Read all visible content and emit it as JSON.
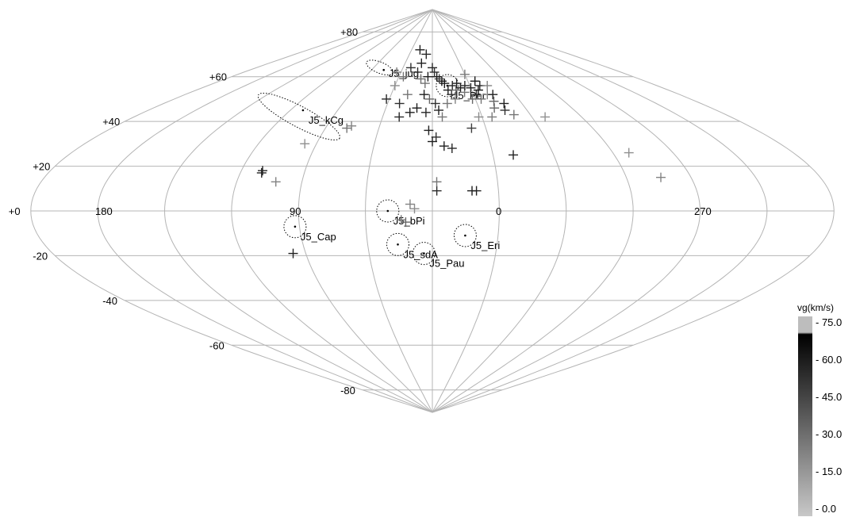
{
  "chart_data": {
    "type": "scatter",
    "projection": "sinusoidal (all-sky)",
    "xlim": [
      -180,
      180
    ],
    "ylim": [
      -90,
      90
    ],
    "lon_labels": [
      "180",
      "90",
      "0",
      "270"
    ],
    "lat_labels": [
      "+80",
      "+60",
      "+40",
      "+20",
      "+0",
      "-20",
      "-40",
      "-60",
      "-80"
    ],
    "colorbar": {
      "title": "vg(km/s)",
      "range": [
        0,
        75
      ],
      "ticks": [
        "- 75.0",
        "- 60.0",
        "- 45.0",
        "- 30.0",
        "- 15.0",
        "- 0.0"
      ]
    },
    "showers": [
      {
        "name": "J5_jug",
        "lon": -48,
        "lat": 63
      },
      {
        "name": "J5_kCg",
        "lon": -82,
        "lat": 45
      },
      {
        "name": "J5_Per",
        "lon": 12,
        "lat": 56
      },
      {
        "name": "J5_bPi",
        "lon": -20,
        "lat": 0
      },
      {
        "name": "J5_Cap",
        "lon": -62,
        "lat": -7
      },
      {
        "name": "J5_sdA",
        "lon": -16,
        "lat": -15
      },
      {
        "name": "J5_Pau",
        "lon": -4,
        "lat": -19
      },
      {
        "name": "J5_Eri",
        "lon": 15,
        "lat": -11
      }
    ],
    "points": [
      {
        "lon": 12,
        "lat": 54,
        "vg": 60
      },
      {
        "lon": 14,
        "lat": 52,
        "vg": 55
      },
      {
        "lon": 10,
        "lat": 57,
        "vg": 62
      },
      {
        "lon": 8,
        "lat": 58,
        "vg": 65
      },
      {
        "lon": 6,
        "lat": 59,
        "vg": 48
      },
      {
        "lon": 16,
        "lat": 56,
        "vg": 58
      },
      {
        "lon": 18,
        "lat": 54,
        "vg": 35
      },
      {
        "lon": 20,
        "lat": 57,
        "vg": 60
      },
      {
        "lon": 22,
        "lat": 55,
        "vg": 62
      },
      {
        "lon": 24,
        "lat": 53,
        "vg": 30
      },
      {
        "lon": 26,
        "lat": 56,
        "vg": 58
      },
      {
        "lon": 30,
        "lat": 55,
        "vg": 60
      },
      {
        "lon": 32,
        "lat": 52,
        "vg": 55
      },
      {
        "lon": 28,
        "lat": 50,
        "vg": 35
      },
      {
        "lon": 35,
        "lat": 54,
        "vg": 65
      },
      {
        "lon": 36,
        "lat": 58,
        "vg": 62
      },
      {
        "lon": 34,
        "lat": 50,
        "vg": 30
      },
      {
        "lon": 40,
        "lat": 52,
        "vg": 25
      },
      {
        "lon": 42,
        "lat": 49,
        "vg": 35
      },
      {
        "lon": 48,
        "lat": 48,
        "vg": 60
      },
      {
        "lon": 46,
        "lat": 45,
        "vg": 55
      },
      {
        "lon": 50,
        "lat": 43,
        "vg": 30
      },
      {
        "lon": 44,
        "lat": 52,
        "vg": 60
      },
      {
        "lon": 38,
        "lat": 56,
        "vg": 58
      },
      {
        "lon": 4,
        "lat": 60,
        "vg": 62
      },
      {
        "lon": 2,
        "lat": 62,
        "vg": 55
      },
      {
        "lon": 0,
        "lat": 64,
        "vg": 58
      },
      {
        "lon": -4,
        "lat": 60,
        "vg": 60
      },
      {
        "lon": -6,
        "lat": 57,
        "vg": 30
      },
      {
        "lon": -10,
        "lat": 59,
        "vg": 32
      },
      {
        "lon": -14,
        "lat": 62,
        "vg": 58
      },
      {
        "lon": -12,
        "lat": 66,
        "vg": 60
      },
      {
        "lon": -8,
        "lat": 70,
        "vg": 58
      },
      {
        "lon": -18,
        "lat": 72,
        "vg": 60
      },
      {
        "lon": -22,
        "lat": 64,
        "vg": 55
      },
      {
        "lon": -26,
        "lat": 60,
        "vg": 30
      },
      {
        "lon": -6,
        "lat": 52,
        "vg": 60
      },
      {
        "lon": -2,
        "lat": 50,
        "vg": 35
      },
      {
        "lon": 2,
        "lat": 48,
        "vg": 55
      },
      {
        "lon": 4,
        "lat": 45,
        "vg": 60
      },
      {
        "lon": 10,
        "lat": 48,
        "vg": 30
      },
      {
        "lon": 16,
        "lat": 50,
        "vg": 25
      },
      {
        "lon": -10,
        "lat": 46,
        "vg": 62
      },
      {
        "lon": -14,
        "lat": 44,
        "vg": 60
      },
      {
        "lon": -4,
        "lat": 44,
        "vg": 58
      },
      {
        "lon": -18,
        "lat": 52,
        "vg": 30
      },
      {
        "lon": -22,
        "lat": 48,
        "vg": 55
      },
      {
        "lon": -32,
        "lat": 50,
        "vg": 58
      },
      {
        "lon": -34,
        "lat": 62,
        "vg": 28
      },
      {
        "lon": -30,
        "lat": 56,
        "vg": 22
      },
      {
        "lon": -20,
        "lat": 42,
        "vg": 58
      },
      {
        "lon": 6,
        "lat": 42,
        "vg": 30
      },
      {
        "lon": -2,
        "lat": 36,
        "vg": 60
      },
      {
        "lon": 2,
        "lat": 33,
        "vg": 55
      },
      {
        "lon": 0,
        "lat": 31,
        "vg": 62
      },
      {
        "lon": 6,
        "lat": 29,
        "vg": 60
      },
      {
        "lon": 22,
        "lat": 37,
        "vg": 50
      },
      {
        "lon": 28,
        "lat": 42,
        "vg": 22
      },
      {
        "lon": 36,
        "lat": 42,
        "vg": 28
      },
      {
        "lon": 40,
        "lat": 46,
        "vg": 35
      },
      {
        "lon": 10,
        "lat": 28,
        "vg": 58
      },
      {
        "lon": 40,
        "lat": 25,
        "vg": 60
      },
      {
        "lon": 68,
        "lat": 42,
        "vg": 20
      },
      {
        "lon": 98,
        "lat": 26,
        "vg": 20
      },
      {
        "lon": 106,
        "lat": 15,
        "vg": 25
      },
      {
        "lon": -46,
        "lat": 38,
        "vg": 25
      },
      {
        "lon": -48,
        "lat": 37,
        "vg": 30
      },
      {
        "lon": -66,
        "lat": 30,
        "vg": 20
      },
      {
        "lon": -72,
        "lat": 13,
        "vg": 25
      },
      {
        "lon": -80,
        "lat": 17,
        "vg": 60
      },
      {
        "lon": -80,
        "lat": 18,
        "vg": 58
      },
      {
        "lon": 18,
        "lat": 9,
        "vg": 62
      },
      {
        "lon": 20,
        "lat": 9,
        "vg": 60
      },
      {
        "lon": 2,
        "lat": 9,
        "vg": 58
      },
      {
        "lon": 2,
        "lat": 13,
        "vg": 30
      },
      {
        "lon": -8,
        "lat": 1,
        "vg": 22
      },
      {
        "lon": -10,
        "lat": 3,
        "vg": 25
      },
      {
        "lon": -12,
        "lat": -5,
        "vg": 35
      },
      {
        "lon": -14,
        "lat": -4,
        "vg": 30
      },
      {
        "lon": -66,
        "lat": -19,
        "vg": 60
      },
      {
        "lon": 30,
        "lat": 61,
        "vg": 28
      },
      {
        "lon": 44,
        "lat": 56,
        "vg": 25
      }
    ]
  }
}
